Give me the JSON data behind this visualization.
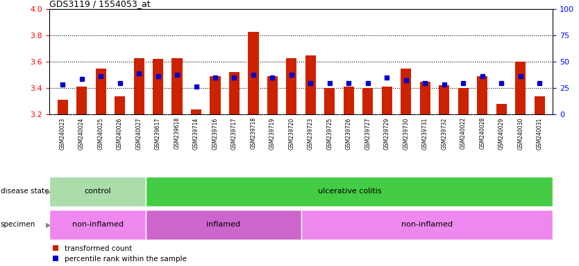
{
  "title": "GDS3119 / 1554053_at",
  "samples": [
    "GSM240023",
    "GSM240024",
    "GSM240025",
    "GSM240026",
    "GSM240027",
    "GSM239617",
    "GSM239618",
    "GSM239714",
    "GSM239716",
    "GSM239717",
    "GSM239718",
    "GSM239719",
    "GSM239720",
    "GSM239723",
    "GSM239725",
    "GSM239726",
    "GSM239727",
    "GSM239729",
    "GSM239730",
    "GSM239731",
    "GSM239732",
    "GSM240022",
    "GSM240028",
    "GSM240029",
    "GSM240030",
    "GSM240031"
  ],
  "bar_values": [
    3.31,
    3.41,
    3.55,
    3.34,
    3.63,
    3.62,
    3.63,
    3.24,
    3.49,
    3.52,
    3.83,
    3.49,
    3.63,
    3.65,
    3.4,
    3.41,
    3.4,
    3.41,
    3.55,
    3.45,
    3.42,
    3.4,
    3.49,
    3.28,
    3.6,
    3.34
  ],
  "blue_values": [
    3.43,
    3.47,
    3.49,
    3.44,
    3.51,
    3.49,
    3.5,
    3.41,
    3.48,
    3.48,
    3.5,
    3.48,
    3.5,
    3.44,
    3.44,
    3.44,
    3.44,
    3.48,
    3.46,
    3.44,
    3.43,
    3.44,
    3.49,
    3.44,
    3.49,
    3.44
  ],
  "ymin": 3.2,
  "ymax": 4.0,
  "yticks_left": [
    3.2,
    3.4,
    3.6,
    3.8,
    4.0
  ],
  "yticks_right": [
    0,
    25,
    50,
    75,
    100
  ],
  "bar_color": "#cc2200",
  "blue_color": "#0000cc",
  "bar_bottom": 3.2,
  "disease_state_groups": [
    {
      "label": "control",
      "start": 0,
      "end": 5,
      "color": "#aaddaa"
    },
    {
      "label": "ulcerative colitis",
      "start": 5,
      "end": 26,
      "color": "#44cc44"
    }
  ],
  "specimen_groups": [
    {
      "label": "non-inflamed",
      "start": 0,
      "end": 5,
      "color": "#ee88ee"
    },
    {
      "label": "inflamed",
      "start": 5,
      "end": 13,
      "color": "#cc66cc"
    },
    {
      "label": "non-inflamed",
      "start": 13,
      "end": 26,
      "color": "#ee88ee"
    }
  ],
  "bg_color": "#ffffff",
  "xtick_bg": "#cccccc"
}
